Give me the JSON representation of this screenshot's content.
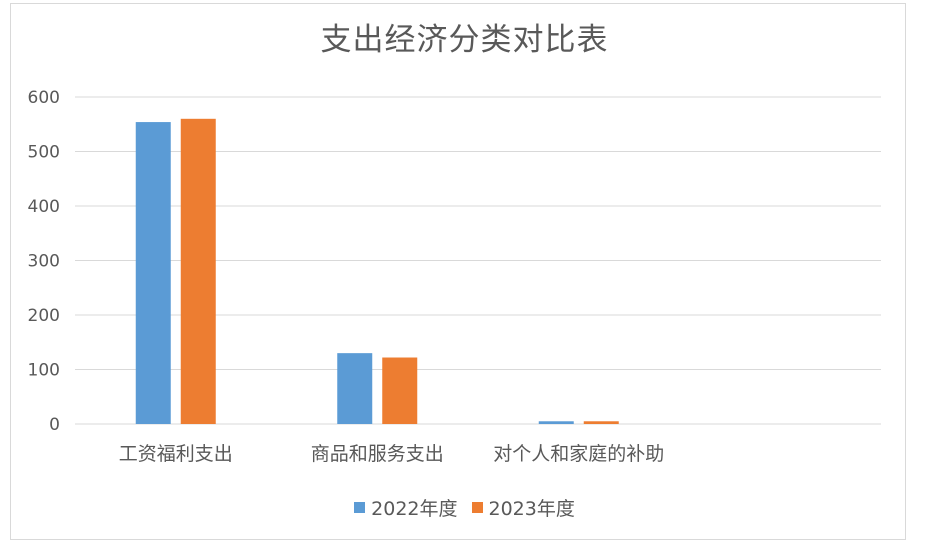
{
  "chart_data": {
    "type": "bar",
    "title": "支出经济分类对比表",
    "categories": [
      "工资福利支出",
      "商品和服务支出",
      "对个人和家庭的补助"
    ],
    "series": [
      {
        "name": "2022年度",
        "values": [
          554,
          130,
          5
        ],
        "color": "#5b9bd5"
      },
      {
        "name": "2023年度",
        "values": [
          560,
          122,
          5
        ],
        "color": "#ed7d31"
      }
    ],
    "xlabel": "",
    "ylabel": "",
    "ylim": [
      0,
      600
    ],
    "yticks": [
      0,
      100,
      200,
      300,
      400,
      500,
      600
    ],
    "grid": true,
    "legend_position": "bottom"
  }
}
